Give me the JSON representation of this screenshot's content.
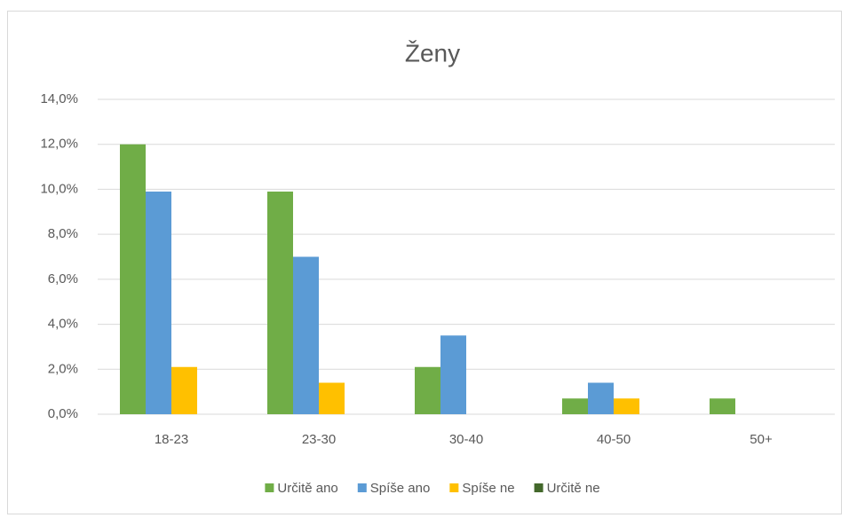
{
  "chart_data": {
    "type": "bar",
    "title": "Ženy",
    "categories": [
      "18-23",
      "23-30",
      "30-40",
      "40-50",
      "50+"
    ],
    "series": [
      {
        "name": "Určitě ano",
        "color": "#70ad47",
        "values": [
          12.0,
          9.9,
          2.1,
          0.7,
          0.7
        ]
      },
      {
        "name": "Spíše ano",
        "color": "#5b9bd5",
        "values": [
          9.9,
          7.0,
          3.5,
          1.4,
          0
        ]
      },
      {
        "name": "Spíše ne",
        "color": "#ffc000",
        "values": [
          2.1,
          1.4,
          0,
          0.7,
          0
        ]
      },
      {
        "name": "Určitě ne",
        "color": "#43682b",
        "values": [
          0,
          0,
          0,
          0,
          0
        ]
      }
    ],
    "ylim": [
      0,
      14
    ],
    "yticks": [
      {
        "value": 0,
        "label": "0,0%"
      },
      {
        "value": 2,
        "label": "2,0%"
      },
      {
        "value": 4,
        "label": "4,0%"
      },
      {
        "value": 6,
        "label": "6,0%"
      },
      {
        "value": 8,
        "label": "8,0%"
      },
      {
        "value": 10,
        "label": "10,0%"
      },
      {
        "value": 12,
        "label": "12,0%"
      },
      {
        "value": 14,
        "label": "14,0%"
      }
    ],
    "grid": true,
    "legend": "bottom"
  }
}
